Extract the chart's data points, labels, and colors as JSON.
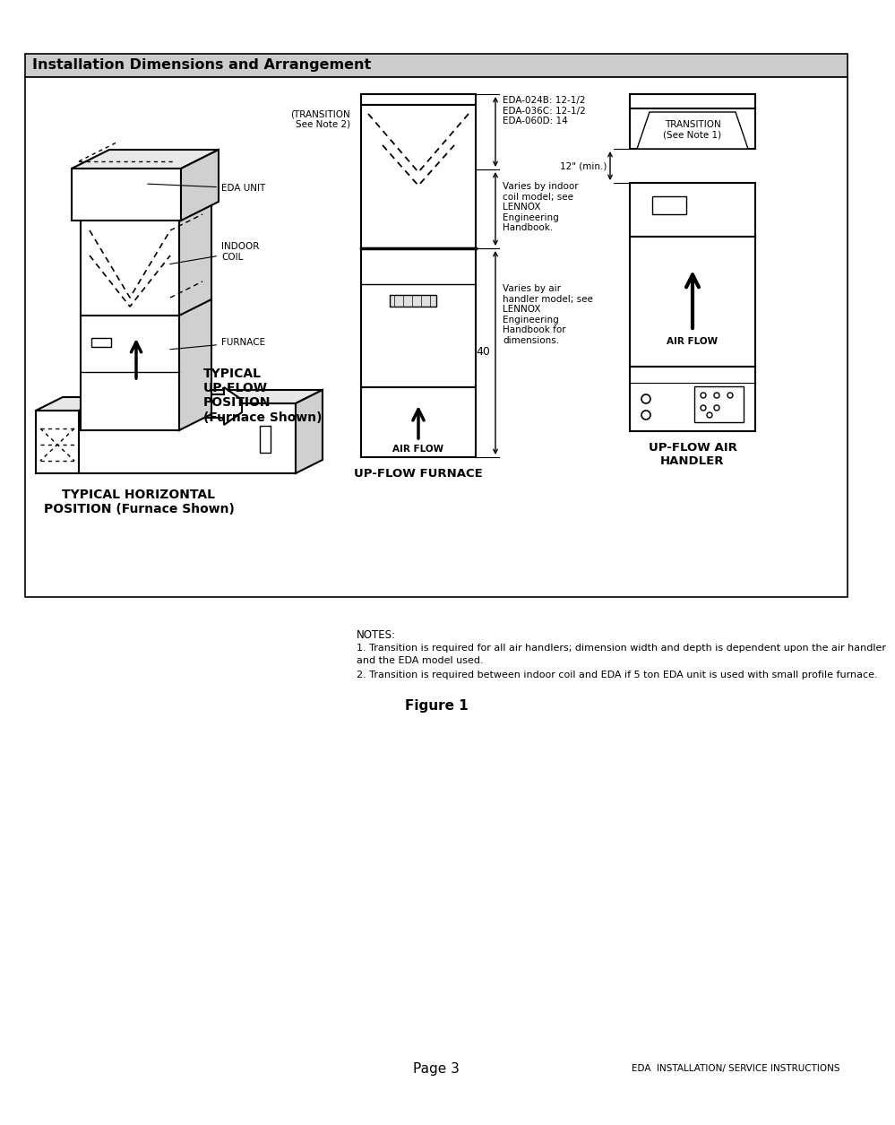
{
  "title": "Installation Dimensions and Arrangement",
  "figure_label": "Figure 1",
  "page_label": "Page 3",
  "footer_right": "EDA  INSTALLATION/ SERVICE INSTRUCTIONS",
  "bg_color": "#ffffff",
  "header_bg": "#cccccc",
  "notes_line1": "NOTES:",
  "notes_line2": "1. Transition is required for all air handlers; dimension width and depth is dependent upon the air handler",
  "notes_line3": "and the EDA model used.",
  "notes_line4": "2. Transition is required between indoor coil and EDA if 5 ton EDA unit is used with small profile furnace.",
  "upflow_furnace_label": "UP-FLOW FURNACE",
  "upflow_ah_label1": "UP-FLOW AIR",
  "upflow_ah_label2": "HANDLER",
  "typical_upflow_line1": "TYPICAL",
  "typical_upflow_line2": "UP-FLOW",
  "typical_upflow_line3": "POSITION",
  "typical_upflow_line4": "(Furnace Shown)",
  "typical_horiz_line1": "TYPICAL HORIZONTAL",
  "typical_horiz_line2": "POSITION (Furnace Shown)",
  "transition_note1_line1": "(TRANSITION",
  "transition_note1_line2": "See Note 2)",
  "transition_note2_line1": "TRANSITION",
  "transition_note2_line2": "(See Note 1)",
  "eda_dims": "EDA-024B: 12-1/2\nEDA-036C: 12-1/2\nEDA-060D: 14",
  "varies_coil": "Varies by indoor\ncoil model; see\nLENNOX\nEngineering\nHandbook.",
  "varies_ah": "Varies by air\nhandler model; see\nLENNOX\nEngineering\nHandbook for\ndimensions.",
  "dim_40": "40",
  "dim_12min": "12\" (min.)",
  "air_flow": "AIR FLOW",
  "eda_unit_label": "EDA UNIT",
  "indoor_coil_label": "INDOOR\nCOIL",
  "furnace_label": "FURNACE"
}
